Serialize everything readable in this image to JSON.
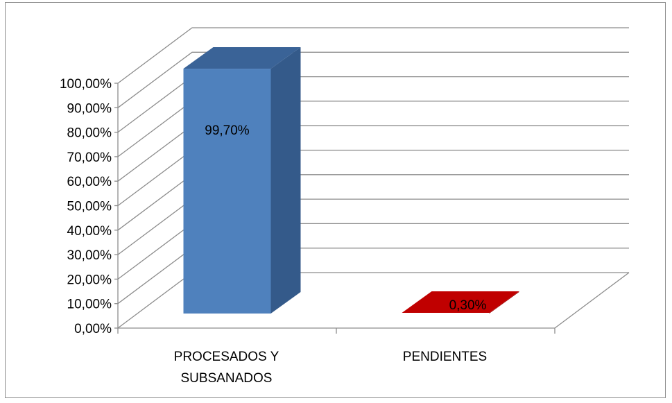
{
  "chart_data": {
    "type": "bar",
    "three_d": true,
    "categories": [
      "PROCESADOS Y SUBSANADOS",
      "PENDIENTES"
    ],
    "category_lines": [
      [
        "PROCESADOS Y",
        "SUBSANADOS"
      ],
      [
        "PENDIENTES"
      ]
    ],
    "values": [
      99.7,
      0.3
    ],
    "data_labels": [
      "99,70%",
      "0,30%"
    ],
    "y_ticks": [
      "0,00%",
      "10,00%",
      "20,00%",
      "30,00%",
      "40,00%",
      "50,00%",
      "60,00%",
      "70,00%",
      "80,00%",
      "90,00%",
      "100,00%"
    ],
    "ylim": [
      0,
      100
    ],
    "grid": true,
    "legend": "none",
    "title": "",
    "xlabel": "",
    "ylabel": "",
    "colors": {
      "bar1_front": "#4f81bd",
      "bar1_top": "#3a6397",
      "bar1_side": "#345a8a",
      "bar2_top": "#c00000",
      "bar2_front": "#9a0000",
      "grid": "#8c8c8c",
      "axis": "#8c8c8c",
      "frame": "#8c8c8c"
    }
  }
}
